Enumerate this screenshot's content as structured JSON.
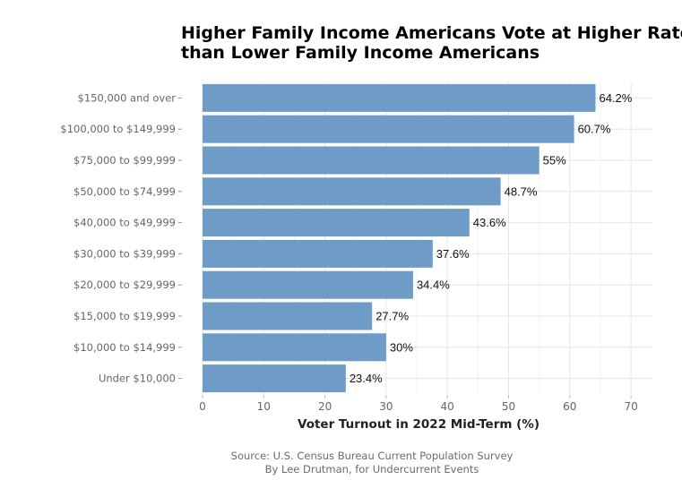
{
  "title_line1": "Higher Family Income Americans Vote at Higher Rates",
  "title_line2": "than Lower Family Income Americans",
  "source_line": "Source: U.S. Census Bureau Current Population Survey",
  "author_line": "By Lee Drutman, for Undercurrent Events",
  "chart_data": {
    "type": "bar",
    "orientation": "horizontal",
    "title": "Higher Family Income Americans Vote at Higher Rates than Lower Family Income Americans",
    "xlabel": "Voter Turnout in 2022 Mid-Term (%)",
    "ylabel": "",
    "xlim": [
      0,
      70
    ],
    "xticks": [
      0,
      10,
      20,
      30,
      40,
      50,
      60,
      70
    ],
    "grid": true,
    "bar_color": "#6f9cc6",
    "categories": [
      "$150,000 and over",
      "$100,000 to $149,999",
      "$75,000 to $99,999",
      "$50,000 to $74,999",
      "$40,000 to $49,999",
      "$30,000 to $39,999",
      "$20,000 to $29,999",
      "$15,000 to $19,999",
      "$10,000 to $14,999",
      "Under $10,000"
    ],
    "values": [
      64.2,
      60.7,
      55,
      48.7,
      43.6,
      37.6,
      34.4,
      27.7,
      30,
      23.4
    ],
    "value_labels": [
      "64.2%",
      "60.7%",
      "55%",
      "48.7%",
      "43.6%",
      "37.6%",
      "34.4%",
      "27.7%",
      "30%",
      "23.4%"
    ]
  }
}
